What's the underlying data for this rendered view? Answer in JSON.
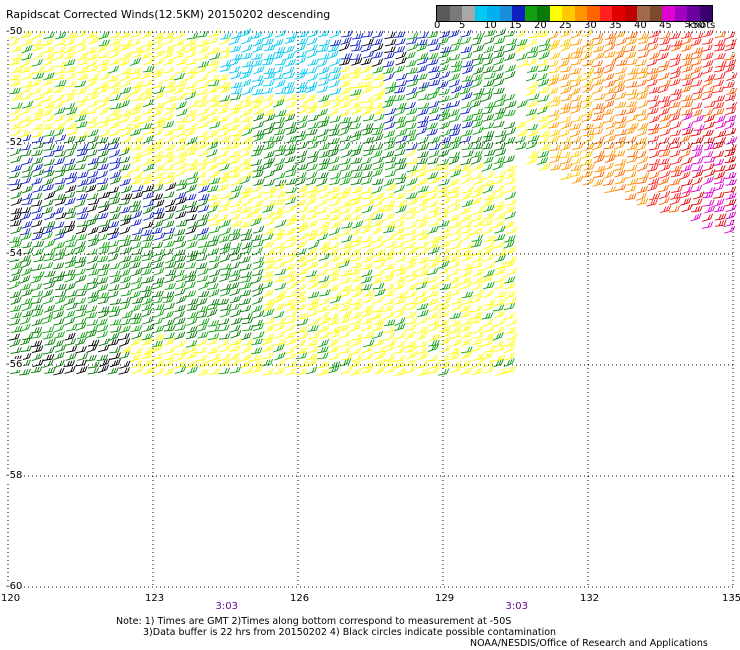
{
  "title": "Rapidscat Corrected Winds(12.5KM) 20150202 descending",
  "legend": {
    "colors": [
      "#5a5a5a",
      "#7a7a7a",
      "#a8a8a8",
      "#00c8f0",
      "#00b0f0",
      "#1a8cd8",
      "#1020c0",
      "#10a010",
      "#0a7a0a",
      "#ffff00",
      "#ffc800",
      "#ff9600",
      "#ff6400",
      "#ff2020",
      "#e00000",
      "#c00000",
      "#a06a4a",
      "#7a4a2a",
      "#e000d0",
      "#a000c0",
      "#6a00a0",
      "#3a0070"
    ],
    "labels": [
      "0",
      "5",
      "10",
      "15",
      "20",
      "25",
      "30",
      "35",
      "40",
      "45",
      ">50"
    ],
    "unit": "knots"
  },
  "map": {
    "lon_range": [
      120,
      135
    ],
    "lat_range": [
      -60,
      -50
    ],
    "lat_labels": [
      "-50",
      "-52",
      "-54",
      "-56",
      "-58",
      "-60"
    ],
    "lon_labels": [
      "120",
      "123",
      "126",
      "129",
      "132",
      "135"
    ],
    "time_labels": [
      "3:03",
      "3:03"
    ]
  },
  "notes": {
    "line1": "Note: 1) Times are GMT 2)Times along bottom correspond to measurement at -50S",
    "line2": "3)Data buffer is 22 hrs from 20150202 4) Black circles indicate possible contamination"
  },
  "credit": "NOAA/NESDIS/Office of Research and Applications"
}
